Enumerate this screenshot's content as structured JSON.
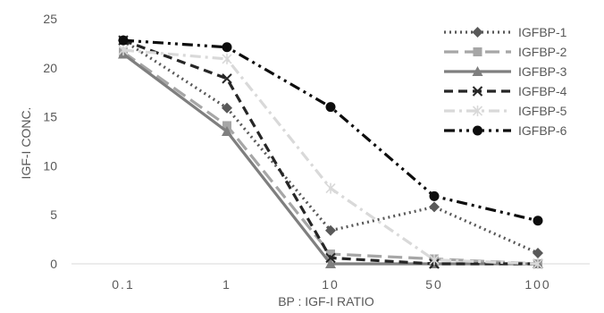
{
  "chart_data": {
    "type": "line",
    "categories": [
      "0.1",
      "1",
      "10",
      "50",
      "100"
    ],
    "xlabel": "BP : IGF-I RATIO",
    "ylabel": "IGF-I CONC.",
    "ylim": [
      0,
      25
    ],
    "yticks": [
      0,
      5,
      10,
      15,
      20,
      25
    ],
    "grid": false,
    "legend_position": "top-right",
    "series": [
      {
        "name": "IGFBP-1",
        "values": [
          22.8,
          15.9,
          3.4,
          5.8,
          1.1
        ],
        "color": "#595959",
        "dash": "dot",
        "marker": "diamond"
      },
      {
        "name": "IGFBP-2",
        "values": [
          21.6,
          14.1,
          1.0,
          0.5,
          0.0
        ],
        "color": "#a6a6a6",
        "dash": "longdash",
        "marker": "square"
      },
      {
        "name": "IGFBP-3",
        "values": [
          21.4,
          13.5,
          0.0,
          0.0,
          0.0
        ],
        "color": "#7f7f7f",
        "dash": "solid",
        "marker": "triangle"
      },
      {
        "name": "IGFBP-4",
        "values": [
          22.8,
          18.9,
          0.6,
          0.0,
          0.0
        ],
        "color": "#262626",
        "dash": "dash",
        "marker": "x"
      },
      {
        "name": "IGFBP-5",
        "values": [
          21.8,
          20.9,
          7.7,
          0.4,
          0.0
        ],
        "color": "#d9d9d9",
        "dash": "dashdot",
        "marker": "star"
      },
      {
        "name": "IGFBP-6",
        "values": [
          22.8,
          22.1,
          16.0,
          6.9,
          4.4
        ],
        "color": "#0d0d0d",
        "dash": "dashdotdot",
        "marker": "circle"
      }
    ]
  }
}
